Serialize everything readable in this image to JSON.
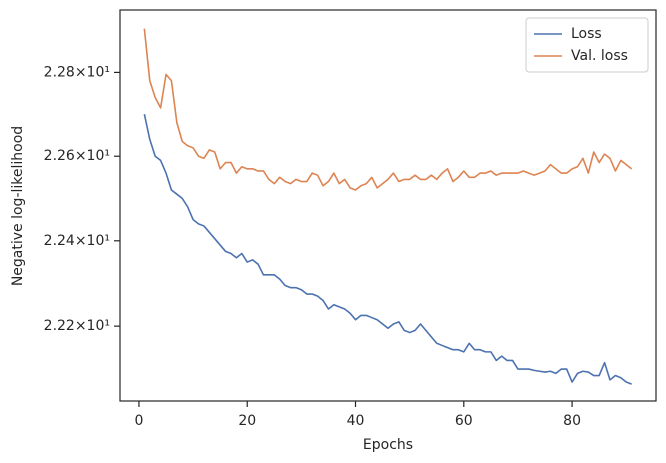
{
  "chart_data": {
    "type": "line",
    "xlabel": "Epochs",
    "ylabel": "Negative log-likelihood",
    "x": [
      1,
      2,
      3,
      4,
      5,
      6,
      7,
      8,
      9,
      10,
      11,
      12,
      13,
      14,
      15,
      16,
      17,
      18,
      19,
      20,
      21,
      22,
      23,
      24,
      25,
      26,
      27,
      28,
      29,
      30,
      31,
      32,
      33,
      34,
      35,
      36,
      37,
      38,
      39,
      40,
      41,
      42,
      43,
      44,
      45,
      46,
      47,
      48,
      49,
      50,
      51,
      52,
      53,
      54,
      55,
      56,
      57,
      58,
      59,
      60,
      61,
      62,
      63,
      64,
      65,
      66,
      67,
      68,
      69,
      70,
      71,
      72,
      73,
      74,
      75,
      76,
      77,
      78,
      79,
      80,
      81,
      82,
      83,
      84,
      85,
      86,
      87,
      88,
      89,
      90,
      91
    ],
    "series": [
      {
        "name": "Loss",
        "color": "#4c72b0",
        "values": [
          22.7,
          22.64,
          22.6,
          22.59,
          22.56,
          22.52,
          22.51,
          22.5,
          22.48,
          22.45,
          22.44,
          22.435,
          22.42,
          22.405,
          22.39,
          22.375,
          22.37,
          22.36,
          22.37,
          22.35,
          22.355,
          22.345,
          22.32,
          22.32,
          22.32,
          22.31,
          22.295,
          22.29,
          22.29,
          22.285,
          22.275,
          22.275,
          22.27,
          22.26,
          22.24,
          22.25,
          22.245,
          22.24,
          22.23,
          22.215,
          22.225,
          22.225,
          22.22,
          22.215,
          22.205,
          22.195,
          22.205,
          22.21,
          22.19,
          22.185,
          22.19,
          22.205,
          22.19,
          22.175,
          22.16,
          22.155,
          22.15,
          22.145,
          22.145,
          22.14,
          22.16,
          22.145,
          22.145,
          22.14,
          22.14,
          22.12,
          22.13,
          22.12,
          22.12,
          22.1,
          22.1,
          22.1,
          22.097,
          22.095,
          22.093,
          22.095,
          22.09,
          22.1,
          22.1,
          22.07,
          22.09,
          22.095,
          22.093,
          22.085,
          22.085,
          22.115,
          22.075,
          22.085,
          22.08,
          22.07,
          22.065
        ]
      },
      {
        "name": "Val. loss",
        "color": "#dd8452",
        "values": [
          22.905,
          22.78,
          22.74,
          22.715,
          22.795,
          22.78,
          22.68,
          22.635,
          22.625,
          22.62,
          22.6,
          22.595,
          22.615,
          22.61,
          22.57,
          22.585,
          22.585,
          22.56,
          22.575,
          22.57,
          22.57,
          22.565,
          22.565,
          22.545,
          22.535,
          22.55,
          22.54,
          22.535,
          22.545,
          22.54,
          22.54,
          22.56,
          22.555,
          22.53,
          22.54,
          22.56,
          22.535,
          22.545,
          22.525,
          22.52,
          22.53,
          22.535,
          22.55,
          22.525,
          22.535,
          22.545,
          22.56,
          22.54,
          22.545,
          22.545,
          22.555,
          22.545,
          22.545,
          22.555,
          22.545,
          22.56,
          22.57,
          22.54,
          22.55,
          22.565,
          22.55,
          22.55,
          22.56,
          22.56,
          22.565,
          22.555,
          22.56,
          22.56,
          22.56,
          22.56,
          22.565,
          22.56,
          22.555,
          22.56,
          22.565,
          22.58,
          22.57,
          22.56,
          22.56,
          22.57,
          22.575,
          22.595,
          22.56,
          22.61,
          22.585,
          22.605,
          22.595,
          22.565,
          22.59,
          22.58,
          22.57
        ]
      }
    ],
    "xlim": [
      -3.5,
      95.5
    ],
    "xticks": [
      0,
      20,
      40,
      60,
      80
    ],
    "ylim": [
      22.026,
      22.95
    ],
    "yscale": "log",
    "yticks": [
      {
        "value": 22.2,
        "label": "2.22×10¹"
      },
      {
        "value": 22.4,
        "label": "2.24×10¹"
      },
      {
        "value": 22.6,
        "label": "2.26×10¹"
      },
      {
        "value": 22.8,
        "label": "2.28×10¹"
      }
    ],
    "legend": "upper right"
  }
}
